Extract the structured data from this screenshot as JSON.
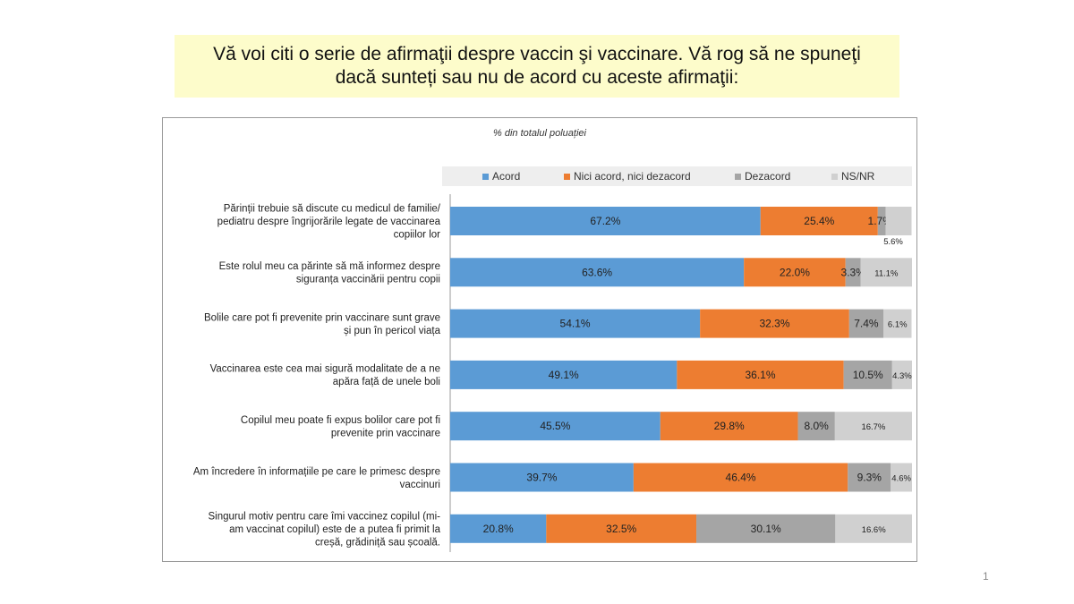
{
  "title": "Vă voi citi o serie de afirmaţii despre vaccin şi vaccinare. Vă rog să ne spuneţi dacă sunteți sau nu de acord cu aceste afirmaţii:",
  "page_number": "1",
  "chart_data": {
    "type": "bar",
    "orientation": "horizontal",
    "stacked": true,
    "subtitle": "% din totalul poluației",
    "legend_position": "top",
    "xlim": [
      0,
      100
    ],
    "categories": [
      [
        "Părinții trebuie să discute cu medicul de familie/",
        "pediatru despre îngrijorările legate de vaccinarea",
        "copiilor lor"
      ],
      [
        "Este rolul meu ca părinte să mă informez despre",
        "siguranța vaccinării pentru copii"
      ],
      [
        "Bolile care pot fi prevenite prin vaccinare sunt grave",
        "și pun în pericol viața"
      ],
      [
        "Vaccinarea este cea mai sigură modalitate de a ne",
        "apăra față de unele boli"
      ],
      [
        "Copilul meu poate fi  expus  bolilor care pot fi",
        "prevenite prin vaccinare"
      ],
      [
        "Am încredere în informațiile pe care le primesc despre",
        "vaccinuri"
      ],
      [
        "Singurul motiv pentru care îmi vaccinez copilul (mi-",
        "am vaccinat copilul) este  de a putea fi primit  la",
        "creșă, grădiniță sau școală."
      ]
    ],
    "series": [
      {
        "name": "Acord",
        "color": "#5b9bd5",
        "values": [
          67.2,
          63.6,
          54.1,
          49.1,
          45.5,
          39.7,
          20.8
        ],
        "labels": [
          "67.2%",
          "63.6%",
          "54.1%",
          "49.1%",
          "45.5%",
          "39.7%",
          "20.8%"
        ]
      },
      {
        "name": "Nici acord, nici dezacord",
        "color": "#ed7d31",
        "values": [
          25.4,
          22.0,
          32.3,
          36.1,
          29.8,
          46.4,
          32.5
        ],
        "labels": [
          "25.4%",
          "22.0%",
          "32.3%",
          "36.1%",
          "29.8%",
          "46.4%",
          "32.5%"
        ]
      },
      {
        "name": "Dezacord",
        "color": "#a5a5a5",
        "values": [
          1.7,
          3.3,
          7.4,
          10.5,
          8.0,
          9.3,
          30.1
        ],
        "labels": [
          "1.7%",
          "3.3%",
          "7.4%",
          "10.5%",
          "8.0%",
          "9.3%",
          "30.1%"
        ]
      },
      {
        "name": "NS/NR",
        "color": "#d0d0d0",
        "values": [
          5.6,
          11.1,
          6.1,
          4.3,
          16.7,
          4.6,
          16.6
        ],
        "labels": [
          "5.6%",
          "11.1%",
          "6.1%",
          "4.3%",
          "16.7%",
          "4.6%",
          "16.6%"
        ]
      }
    ]
  }
}
